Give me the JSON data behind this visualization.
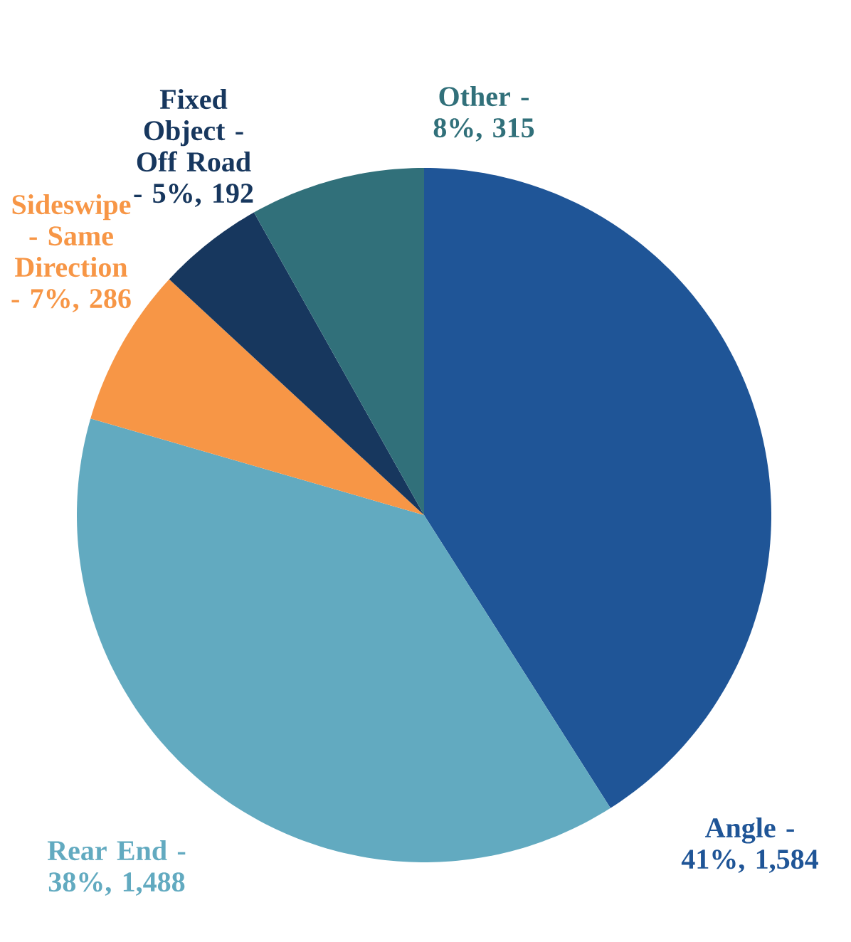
{
  "chart_data": {
    "type": "pie",
    "categories": [
      "Angle - 41%, 1,584",
      "Rear End - 38%, 1,488",
      "Sideswipe - Same Direction - 7%, 286",
      "Fixed Object - Off Road - 5%, 192",
      "Other - 8%, 315"
    ],
    "values": [
      1584,
      1488,
      286,
      192,
      315
    ],
    "colors": [
      "#1f5597",
      "#62aac0",
      "#f79646",
      "#17375e",
      "#31707a"
    ]
  }
}
